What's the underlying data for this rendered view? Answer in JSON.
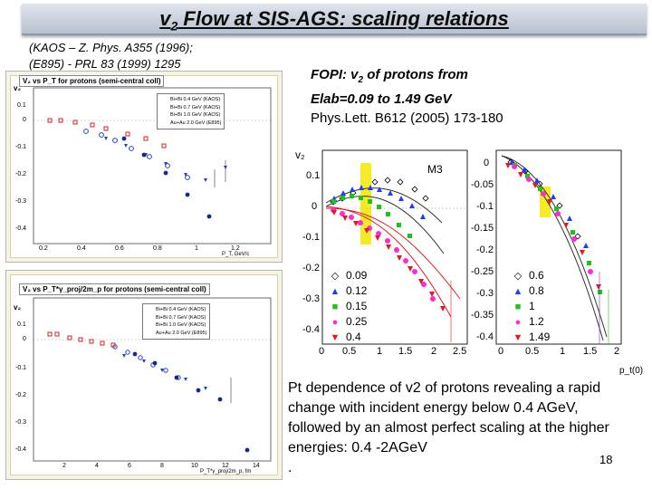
{
  "slide": {
    "title_main": "v",
    "title_sub": "2",
    "title_rest": " Flow at  SIS-AGS:   scaling relations",
    "ref_line1": "(KAOS – Z. Phys. A355 (1996);",
    "ref_line2": "(E895)  - PRL 83 (1999) 1295",
    "fopi_line1_a": "FOPI:  v",
    "fopi_line1_sub": "2",
    "fopi_line1_b": " of protons  from",
    "fopi_line2": "Elab=0.09 to 1.49 GeV",
    "fopi_line3": "Phys.Lett. B612 (2005) 173-180",
    "summary_text": "Pt dependence of v2 of protons revealing a rapid change with incident energy below 0.4 AGeV, followed by an almost perfect scaling at the higher energies: 0.4 -2AGeV",
    "summary_dot": ".",
    "page_number": "18"
  },
  "top_plot": {
    "title": "V₂  vs P_T for protons (semi-central coll)",
    "ylabel": "v₂",
    "xlabel": "P_T, GeV/c",
    "yticks": [
      "0.1",
      "0",
      "-0.1",
      "-0.2",
      "-0.3",
      "-0.4"
    ],
    "xticks": [
      "0.2",
      "0.4",
      "0.6",
      "0.8",
      "1",
      "1.2"
    ],
    "legend": [
      "Bi+Bi 0.4 GeV (KAOS)",
      "Bi+Bi 0.7 GeV (KAOS)",
      "Bi+Bi 1.0 GeV (KAOS)",
      "Au+Au 2.0 GeV (E895)"
    ]
  },
  "bottom_plot": {
    "title": "V₂  vs P_T*γ_proj/2m_p for protons (semi-central coll)",
    "ylabel": "v₂",
    "xlabel": "P_T*γ_proj/2m_p, fm",
    "yticks": [
      "0.1",
      "0",
      "-0.1",
      "-0.2",
      "-0.3",
      "-0.4"
    ],
    "xticks": [
      "2",
      "4",
      "6",
      "8",
      "10",
      "12",
      "14"
    ],
    "legend": [
      "Bi+Bi 0.4 GeV (KAOS)",
      "Bi+Bi 0.7 GeV (KAOS)",
      "Bi+Bi 1.0 GeV (KAOS)",
      "Au+Au 2.0 GeV (E895)"
    ]
  },
  "right_plot": {
    "ylabel": "v₂",
    "xlabel": "p_t(0)",
    "m3_label": "M3",
    "left_yticks": [
      "0.1",
      "0",
      "-0.1",
      "-0.2",
      "-0.3",
      "-0.4"
    ],
    "left_xticks": [
      "0",
      "0.5",
      "1",
      "1.5",
      "2",
      "2.5"
    ],
    "right_yticks": [
      "0",
      "-0.05",
      "-0.1",
      "-0.15",
      "-0.2",
      "-0.25",
      "-0.3",
      "-0.35",
      "-0.4"
    ],
    "right_xticks": [
      "0",
      "0.5",
      "1",
      "1.5",
      "2"
    ],
    "legend_left": [
      "0.09",
      "0.12",
      "0.15",
      "0.25",
      "0.4"
    ],
    "legend_right": [
      "0.6",
      "0.8",
      "1",
      "1.2",
      "1.49"
    ],
    "colors_left": [
      "#000000",
      "#1e3cff",
      "#17c617",
      "#ff2ad4",
      "#e31a1a"
    ],
    "colors_right": [
      "#000000",
      "#1e3cff",
      "#17c617",
      "#ff2ad4",
      "#e31a1a"
    ]
  }
}
